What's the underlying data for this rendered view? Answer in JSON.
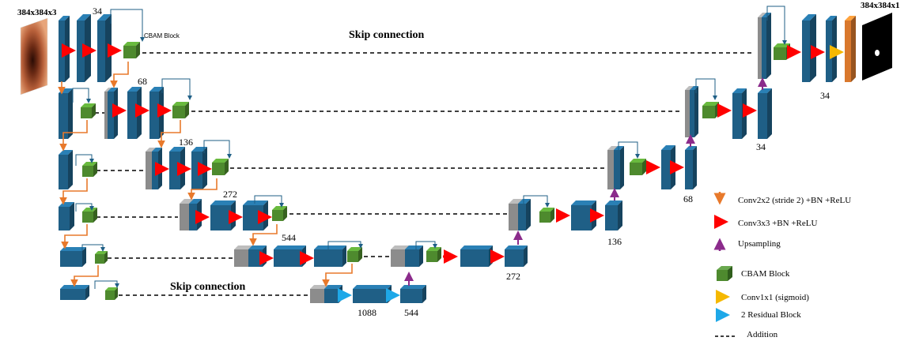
{
  "labels": {
    "input_size": "384x384x3",
    "output_size": "384x384x1",
    "skip_top": "Skip connection",
    "skip_bottom": "Skip connection",
    "cbam_block": "CBAM Block"
  },
  "channels": {
    "enc1": "34",
    "enc2": "68",
    "enc3": "136",
    "enc4": "272",
    "enc5": "544",
    "bottleneck_a": "1088",
    "bottleneck_b": "544",
    "dec5": "272",
    "dec4": "136",
    "dec3": "68",
    "dec2": "34",
    "dec1": "34"
  },
  "legend": [
    {
      "icon": "orange-down-arrow",
      "text": "Conv2x2 (stride 2) +BN +ReLU",
      "color": "#E8792B"
    },
    {
      "icon": "red-right-arrow",
      "text": "Conv3x3 +BN +ReLU",
      "color": "#FF0000"
    },
    {
      "icon": "purple-up-arrow",
      "text": "Upsampling",
      "color": "#8B2B8B"
    },
    {
      "icon": "green-cube",
      "text": "CBAM Block",
      "color": "#4E8A2E"
    },
    {
      "icon": "yellow-right-arrow",
      "text": "Conv1x1 (sigmoid)",
      "color": "#F5B800"
    },
    {
      "icon": "blue-right-arrow",
      "text": "2 Residual Block",
      "color": "#1EA8E8"
    },
    {
      "icon": "dashed-line",
      "text": "Addition",
      "color": "#000000"
    }
  ],
  "colors": {
    "block": "#1F5F86",
    "concat": "#8C8C8C",
    "cbam": "#4E8A2E",
    "output": "#D9782D",
    "conv_arrow": "#FF0000",
    "down_arrow": "#E8792B",
    "up_arrow": "#8B2B8B",
    "res_arrow": "#1EA8E8",
    "sig_arrow": "#F5B800"
  }
}
